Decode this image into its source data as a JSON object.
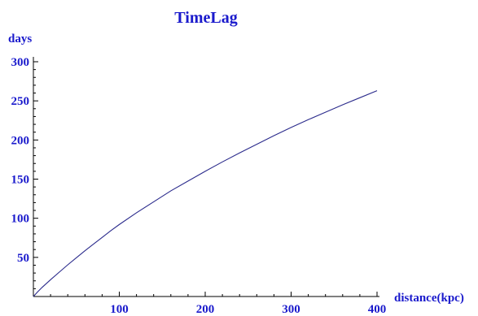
{
  "chart_data": {
    "type": "line",
    "title": "TimeLag",
    "xlabel": "distance(kpc)",
    "ylabel": "days",
    "xlim": [
      0,
      400
    ],
    "ylim": [
      0,
      300
    ],
    "x_ticks": [
      100,
      200,
      300,
      400
    ],
    "y_ticks": [
      50,
      100,
      150,
      200,
      250,
      300
    ],
    "grid": false,
    "colors": {
      "text": "#1a1acc",
      "line": "#2b2b8c",
      "axis": "#000000"
    },
    "series": [
      {
        "x": [
          0,
          5,
          10,
          20,
          30,
          40,
          50,
          60,
          70,
          80,
          90,
          100,
          120,
          140,
          160,
          180,
          200,
          220,
          240,
          260,
          280,
          300,
          320,
          340,
          360,
          380,
          400
        ],
        "values": [
          0,
          6,
          11.5,
          21.5,
          31,
          40.5,
          49.5,
          58.5,
          67,
          75.5,
          84,
          92,
          107,
          121,
          135,
          147.5,
          160,
          172,
          183.5,
          194.5,
          205.5,
          216,
          226,
          235.5,
          245,
          254,
          263
        ]
      }
    ]
  }
}
